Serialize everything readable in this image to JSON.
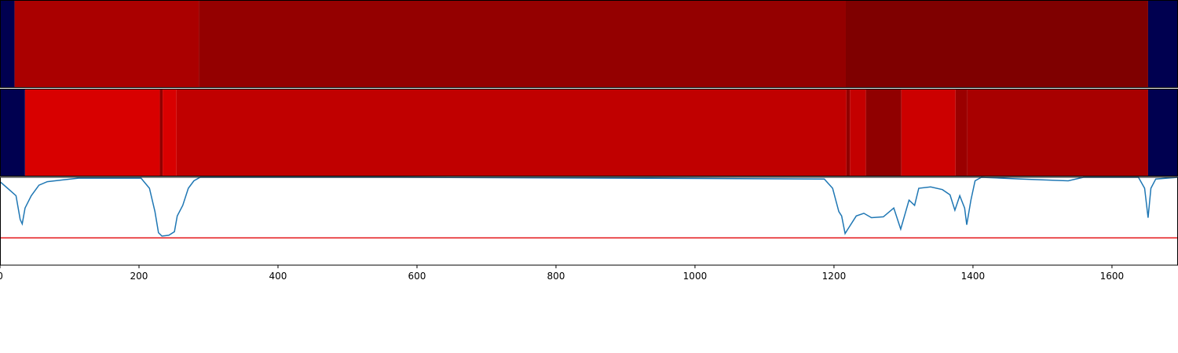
{
  "chart_data": {
    "type": "segmentation",
    "xlim": [
      0,
      1695
    ],
    "xticks": [
      0,
      200,
      400,
      600,
      800,
      1000,
      1200,
      1400,
      1600
    ],
    "ylim": [
      0,
      1
    ],
    "tracks": [
      {
        "segments": [
          {
            "start": 0,
            "end": 21,
            "color": "#000050"
          },
          {
            "start": 21,
            "end": 286,
            "color": "#aa0000"
          },
          {
            "start": 286,
            "end": 1217,
            "color": "#940000"
          },
          {
            "start": 1217,
            "end": 1652,
            "color": "#7f0000"
          },
          {
            "start": 1652,
            "end": 1695,
            "color": "#000050"
          }
        ]
      },
      {
        "segments": [
          {
            "start": 0,
            "end": 36,
            "color": "#000050"
          },
          {
            "start": 36,
            "end": 230,
            "color": "#d80000"
          },
          {
            "start": 230,
            "end": 234,
            "color": "#900000"
          },
          {
            "start": 234,
            "end": 254,
            "color": "#d80000"
          },
          {
            "start": 254,
            "end": 1218,
            "color": "#c00000"
          },
          {
            "start": 1218,
            "end": 1223,
            "color": "#900000"
          },
          {
            "start": 1223,
            "end": 1246,
            "color": "#c40000"
          },
          {
            "start": 1246,
            "end": 1297,
            "color": "#900000"
          },
          {
            "start": 1297,
            "end": 1375,
            "color": "#cc0000"
          },
          {
            "start": 1375,
            "end": 1392,
            "color": "#9a0000"
          },
          {
            "start": 1392,
            "end": 1652,
            "color": "#a80000"
          },
          {
            "start": 1652,
            "end": 1695,
            "color": "#000050"
          }
        ]
      }
    ],
    "line": {
      "color": "#1f77b4",
      "x": [
        0,
        11,
        23,
        29,
        32,
        36,
        45,
        56,
        68,
        90,
        113,
        203,
        215,
        223,
        228,
        233,
        243,
        251,
        255,
        263,
        271,
        279,
        288,
        565,
        1186,
        1198,
        1207,
        1211,
        1216,
        1220,
        1232,
        1243,
        1254,
        1271,
        1286,
        1296,
        1308,
        1316,
        1322,
        1339,
        1356,
        1367,
        1374,
        1381,
        1388,
        1391,
        1397,
        1403,
        1412,
        1469,
        1537,
        1559,
        1638,
        1647,
        1652,
        1656,
        1663,
        1695
      ],
      "values": [
        0.95,
        0.875,
        0.79,
        0.52,
        0.47,
        0.65,
        0.79,
        0.91,
        0.95,
        0.97,
        0.99,
        0.99,
        0.875,
        0.61,
        0.37,
        0.33,
        0.34,
        0.38,
        0.56,
        0.68,
        0.875,
        0.96,
        1.0,
        1.0,
        0.98,
        0.875,
        0.61,
        0.56,
        0.36,
        0.41,
        0.56,
        0.59,
        0.54,
        0.55,
        0.65,
        0.41,
        0.74,
        0.68,
        0.875,
        0.89,
        0.86,
        0.8,
        0.625,
        0.79,
        0.65,
        0.46,
        0.74,
        0.96,
        1.0,
        0.98,
        0.96,
        1.0,
        1.0,
        0.875,
        0.54,
        0.875,
        0.98,
        1.0
      ]
    },
    "threshold": {
      "value": 0.31,
      "color": "#e41a1c"
    }
  }
}
